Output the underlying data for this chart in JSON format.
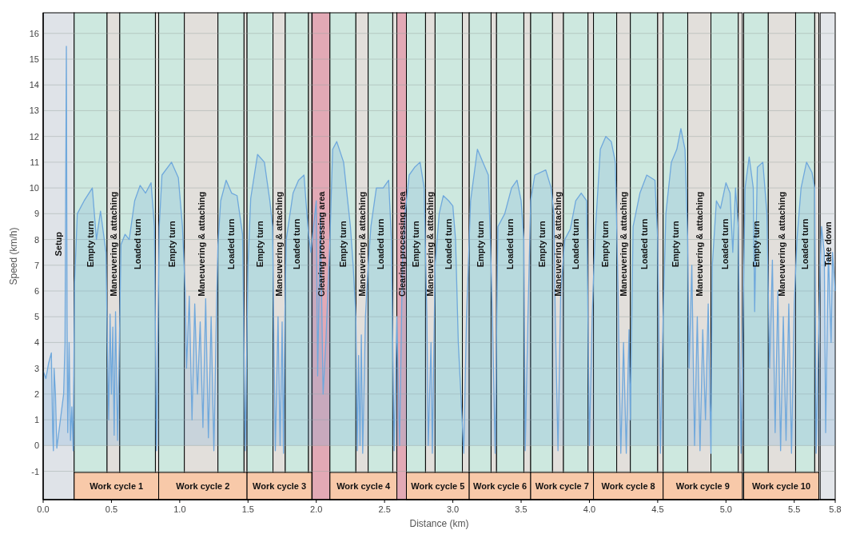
{
  "chart_data": {
    "type": "area",
    "xlabel": "Distance (km)",
    "ylabel": "Speed (km/h)",
    "xlim": [
      0,
      5.8
    ],
    "ylim": [
      -2.1,
      16.8
    ],
    "xticks": [
      {
        "value": 0,
        "label": "0.0"
      },
      0.5,
      {
        "value": 1,
        "label": "1.0"
      },
      1.5,
      {
        "value": 2,
        "label": "2.0"
      },
      2.5,
      {
        "value": 3,
        "label": "3.0"
      },
      3.5,
      {
        "value": 4,
        "label": "4.0"
      },
      4.5,
      {
        "value": 5,
        "label": "5.0"
      },
      5.5,
      5.8
    ],
    "yticks": [
      -1,
      0,
      1,
      2,
      3,
      4,
      5,
      6,
      7,
      8,
      9,
      10,
      11,
      12,
      13,
      14,
      15,
      16
    ],
    "grid": "y",
    "series": [
      {
        "color": "#6fa8dc",
        "x": [
          0,
          0.02,
          0.04,
          0.06,
          0.07,
          0.075,
          0.08,
          0.09,
          0.1,
          0.15,
          0.16,
          0.17,
          0.175,
          0.18,
          0.19,
          0.2,
          0.21,
          0.22,
          0.23,
          0.25,
          0.3,
          0.36,
          0.39,
          0.42,
          0.46,
          0.47,
          0.48,
          0.49,
          0.5,
          0.51,
          0.52,
          0.53,
          0.545,
          0.555,
          0.57,
          0.6,
          0.63,
          0.67,
          0.71,
          0.75,
          0.79,
          0.815,
          0.83,
          0.85,
          0.87,
          0.94,
          0.99,
          1.02,
          1.04,
          1.05,
          1.07,
          1.09,
          1.11,
          1.13,
          1.15,
          1.17,
          1.19,
          1.21,
          1.23,
          1.25,
          1.27,
          1.28,
          1.3,
          1.34,
          1.38,
          1.42,
          1.46,
          1.48,
          1.5,
          1.52,
          1.57,
          1.62,
          1.66,
          1.68,
          1.69,
          1.7,
          1.72,
          1.735,
          1.75,
          1.76,
          1.77,
          1.78,
          1.83,
          1.87,
          1.91,
          1.94,
          1.96,
          1.98,
          2.0,
          2.01,
          2.03,
          2.05,
          2.07,
          2.1,
          2.12,
          2.15,
          2.2,
          2.25,
          2.27,
          2.29,
          2.3,
          2.31,
          2.32,
          2.33,
          2.34,
          2.36,
          2.38,
          2.4,
          2.44,
          2.49,
          2.53,
          2.55,
          2.57,
          2.59,
          2.61,
          2.63,
          2.65,
          2.68,
          2.72,
          2.76,
          2.79,
          2.81,
          2.82,
          2.84,
          2.85,
          2.87,
          2.9,
          2.93,
          2.97,
          3.0,
          3.02,
          3.04,
          3.08,
          3.1,
          3.13,
          3.18,
          3.22,
          3.26,
          3.28,
          3.29,
          3.31,
          3.33,
          3.38,
          3.43,
          3.47,
          3.5,
          3.52,
          3.53,
          3.55,
          3.57,
          3.6,
          3.68,
          3.72,
          3.74,
          3.75,
          3.77,
          3.79,
          3.82,
          3.86,
          3.9,
          3.94,
          3.98,
          4.0,
          4.02,
          4.04,
          4.08,
          4.12,
          4.16,
          4.19,
          4.21,
          4.22,
          4.23,
          4.25,
          4.27,
          4.29,
          4.3,
          4.32,
          4.37,
          4.42,
          4.48,
          4.5,
          4.52,
          4.54,
          4.56,
          4.6,
          4.64,
          4.67,
          4.7,
          4.72,
          4.73,
          4.75,
          4.77,
          4.79,
          4.81,
          4.83,
          4.85,
          4.87,
          4.89,
          4.9,
          4.93,
          4.96,
          5.0,
          5.03,
          5.05,
          5.07,
          5.09,
          5.11,
          5.14,
          5.17,
          5.2,
          5.21,
          5.23,
          5.27,
          5.3,
          5.32,
          5.34,
          5.36,
          5.38,
          5.4,
          5.42,
          5.44,
          5.46,
          5.48,
          5.5,
          5.52,
          5.55,
          5.59,
          5.63,
          5.65,
          5.66,
          5.69,
          5.7,
          5.72,
          5.73,
          5.75,
          5.77,
          5.78,
          5.8
        ],
        "values": [
          2.9,
          2.6,
          3.2,
          3.6,
          0.5,
          -0.2,
          3.0,
          2.0,
          -0.1,
          2.0,
          4,
          15.5,
          5,
          0.5,
          4,
          0.2,
          1.5,
          -0.2,
          6.3,
          9,
          9.5,
          10,
          8,
          9.1,
          7.5,
          4,
          1,
          5.1,
          2,
          4.6,
          0.4,
          5.2,
          0.2,
          3,
          7.8,
          8.2,
          8,
          9.5,
          10.1,
          9.8,
          10.2,
          8.5,
          -0.2,
          8.5,
          10.5,
          11,
          10.4,
          8.5,
          6,
          3,
          5.8,
          1,
          5.5,
          2,
          4.8,
          0.7,
          5.7,
          0.3,
          5,
          -0.2,
          5.5,
          7.8,
          9.5,
          10.3,
          9.8,
          9.7,
          8.2,
          -0.2,
          7,
          9.6,
          11.3,
          11,
          9.5,
          8.5,
          4,
          -0.2,
          5,
          0,
          4.8,
          -0.3,
          5,
          8,
          9.8,
          10.3,
          10.5,
          8.4,
          7.5,
          8.5,
          9.5,
          2.7,
          9,
          2,
          4,
          8,
          11.5,
          11.8,
          11,
          8.5,
          7,
          5,
          -0.2,
          3.5,
          0,
          4.3,
          -0.3,
          5,
          7,
          8.5,
          10,
          10,
          10.3,
          8,
          -0.2,
          5,
          0,
          7,
          9,
          10.5,
          10.8,
          11,
          10,
          5,
          0,
          4,
          -0.3,
          7,
          9,
          9.7,
          9.5,
          9.3,
          8,
          4,
          -0.3,
          5,
          9.5,
          11.5,
          11,
          10.5,
          7,
          5,
          -0.3,
          8.5,
          9,
          10,
          10.3,
          9.5,
          8,
          -0.2,
          5,
          9.5,
          10.5,
          10.7,
          10,
          9,
          5,
          -0.2,
          6,
          8,
          8.4,
          9.5,
          9.8,
          9.5,
          0,
          5,
          8,
          11.5,
          12,
          11.8,
          11,
          6,
          2.5,
          -0.3,
          4,
          -0.3,
          4.5,
          1,
          8.5,
          9.8,
          10.5,
          10.3,
          8,
          -0.3,
          5,
          9,
          11,
          11.5,
          12.3,
          11.5,
          8,
          3,
          7,
          0,
          5,
          -0.2,
          4.5,
          1,
          5.5,
          -0.3,
          7,
          9.5,
          9.2,
          10.2,
          9.8,
          7.5,
          10,
          8.5,
          -0.3,
          10,
          11.2,
          10,
          5.2,
          10.8,
          11,
          9,
          3,
          7.2,
          0.5,
          6,
          -0.2,
          5,
          0.2,
          5.5,
          -0.3,
          5.5,
          8,
          10,
          11,
          10.6,
          10,
          -0.3,
          7,
          8.5,
          7.5,
          0.5,
          7.5,
          4,
          7.5,
          6
        ]
      }
    ],
    "bands": [
      {
        "axis": "x",
        "from": 0,
        "to": 0.227,
        "label": "Setup",
        "color": "#dfe3e8"
      },
      {
        "axis": "x",
        "from": 0.227,
        "to": 0.468,
        "label": "Empty turn",
        "color": "#cde8df"
      },
      {
        "axis": "x",
        "from": 0.468,
        "to": 0.561,
        "label": "Maneuvering & attaching",
        "color": "#e2dfdb"
      },
      {
        "axis": "x",
        "from": 0.561,
        "to": 0.822,
        "label": "Loaded turn",
        "color": "#cde8df"
      },
      {
        "axis": "x",
        "from": 0.822,
        "to": 0.846,
        "color": "#e2dfdb"
      },
      {
        "axis": "x",
        "from": 0.846,
        "to": 1.034,
        "label": "Empty turn",
        "color": "#cde8df"
      },
      {
        "axis": "x",
        "from": 1.034,
        "to": 1.28,
        "label": "Maneuvering & attaching",
        "color": "#e2dfdb"
      },
      {
        "axis": "x",
        "from": 1.28,
        "to": 1.471,
        "label": "Loaded turn",
        "color": "#cde8df"
      },
      {
        "axis": "x",
        "from": 1.471,
        "to": 1.493,
        "color": "#e2dfdb"
      },
      {
        "axis": "x",
        "from": 1.493,
        "to": 1.683,
        "label": "Empty turn",
        "color": "#cde8df"
      },
      {
        "axis": "x",
        "from": 1.683,
        "to": 1.773,
        "label": "Maneuvering & attaching",
        "color": "#e2dfdb"
      },
      {
        "axis": "x",
        "from": 1.773,
        "to": 1.943,
        "label": "Loaded turn",
        "color": "#cde8df"
      },
      {
        "axis": "x",
        "from": 1.943,
        "to": 1.967,
        "color": "#e2dfdb"
      },
      {
        "axis": "x",
        "from": 1.97,
        "to": 2.1,
        "label": "Clearing processing area",
        "color": "#e2a9b5"
      },
      {
        "axis": "x",
        "from": 2.1,
        "to": 2.29,
        "label": "Empty turn",
        "color": "#cde8df"
      },
      {
        "axis": "x",
        "from": 2.29,
        "to": 2.38,
        "label": "Maneuvering & attaching",
        "color": "#e2dfdb"
      },
      {
        "axis": "x",
        "from": 2.38,
        "to": 2.56,
        "label": "Loaded turn",
        "color": "#cde8df"
      },
      {
        "axis": "x",
        "from": 2.56,
        "to": 2.59,
        "color": "#e2dfdb"
      },
      {
        "axis": "x",
        "from": 2.59,
        "to": 2.66,
        "label": "Clearing processing area",
        "color": "#e2a9b5"
      },
      {
        "axis": "x",
        "from": 2.66,
        "to": 2.8,
        "label": "Empty turn",
        "color": "#cde8df"
      },
      {
        "axis": "x",
        "from": 2.8,
        "to": 2.87,
        "label": "Maneuvering & attaching",
        "color": "#e2dfdb"
      },
      {
        "axis": "x",
        "from": 2.87,
        "to": 3.07,
        "label": "Loaded turn",
        "color": "#cde8df"
      },
      {
        "axis": "x",
        "from": 3.07,
        "to": 3.12,
        "color": "#e2dfdb"
      },
      {
        "axis": "x",
        "from": 3.12,
        "to": 3.28,
        "label": "Empty turn",
        "color": "#cde8df"
      },
      {
        "axis": "x",
        "from": 3.28,
        "to": 3.32,
        "color": "#e2dfdb"
      },
      {
        "axis": "x",
        "from": 3.32,
        "to": 3.52,
        "label": "Loaded turn",
        "color": "#cde8df"
      },
      {
        "axis": "x",
        "from": 3.52,
        "to": 3.57,
        "color": "#e2dfdb"
      },
      {
        "axis": "x",
        "from": 3.57,
        "to": 3.73,
        "label": "Empty turn",
        "color": "#cde8df"
      },
      {
        "axis": "x",
        "from": 3.73,
        "to": 3.81,
        "label": "Maneuvering & attaching",
        "color": "#e2dfdb"
      },
      {
        "axis": "x",
        "from": 3.81,
        "to": 3.99,
        "label": "Loaded turn",
        "color": "#cde8df"
      },
      {
        "axis": "x",
        "from": 3.99,
        "to": 4.03,
        "color": "#e2dfdb"
      },
      {
        "axis": "x",
        "from": 4.03,
        "to": 4.2,
        "label": "Empty turn",
        "color": "#cde8df"
      },
      {
        "axis": "x",
        "from": 4.2,
        "to": 4.3,
        "label": "Maneuvering & attaching",
        "color": "#e2dfdb"
      },
      {
        "axis": "x",
        "from": 4.3,
        "to": 4.5,
        "label": "Loaded turn",
        "color": "#cde8df"
      },
      {
        "axis": "x",
        "from": 4.5,
        "to": 4.54,
        "color": "#e2dfdb"
      },
      {
        "axis": "x",
        "from": 4.54,
        "to": 4.72,
        "label": "Empty turn",
        "color": "#cde8df"
      },
      {
        "axis": "x",
        "from": 4.72,
        "to": 4.89,
        "label": "Maneuvering & attaching",
        "color": "#e2dfdb"
      },
      {
        "axis": "x",
        "from": 4.89,
        "to": 5.09,
        "label": "Loaded turn",
        "color": "#cde8df"
      },
      {
        "axis": "x",
        "from": 5.09,
        "to": 5.12,
        "color": "#e2dfdb"
      },
      {
        "axis": "x",
        "from": 5.13,
        "to": 5.31,
        "label": "Empty turn",
        "color": "#cde8df"
      },
      {
        "axis": "x",
        "from": 5.31,
        "to": 5.51,
        "label": "Maneuvering & attaching",
        "color": "#e2dfdb"
      },
      {
        "axis": "x",
        "from": 5.51,
        "to": 5.65,
        "label": "Loaded turn",
        "color": "#cde8df"
      },
      {
        "axis": "x",
        "from": 5.65,
        "to": 5.68,
        "color": "#e2dfdb"
      },
      {
        "axis": "x",
        "from": 5.69,
        "to": 5.8,
        "label": "Take down",
        "color": "#e3e6ea"
      },
      {
        "axis": "x",
        "from": 0.227,
        "to": 0.846,
        "label": "Work cycle 1",
        "color": "#f8c9a9"
      },
      {
        "axis": "x",
        "from": 0.846,
        "to": 1.493,
        "label": "Work cycle 2",
        "color": "#f8c9a9"
      },
      {
        "axis": "x",
        "from": 1.493,
        "to": 1.967,
        "label": "Work cycle 3",
        "color": "#f8c9a9"
      },
      {
        "axis": "x",
        "from": 2.1,
        "to": 2.59,
        "label": "Work cycle 4",
        "color": "#f8c9a9"
      },
      {
        "axis": "x",
        "from": 2.66,
        "to": 3.12,
        "label": "Work cycle 5",
        "color": "#f8c9a9"
      },
      {
        "axis": "x",
        "from": 3.12,
        "to": 3.57,
        "label": "Work cycle 6",
        "color": "#f8c9a9"
      },
      {
        "axis": "x",
        "from": 3.57,
        "to": 4.03,
        "label": "Work cycle 7",
        "color": "#f8c9a9"
      },
      {
        "axis": "x",
        "from": 4.03,
        "to": 4.54,
        "label": "Work cycle 8",
        "color": "#f8c9a9"
      },
      {
        "axis": "x",
        "from": 4.54,
        "to": 5.12,
        "label": "Work cycle 9",
        "color": "#f8c9a9"
      },
      {
        "axis": "x",
        "from": 5.13,
        "to": 5.68,
        "label": "Work cycle 10",
        "color": "#f8c9a9"
      }
    ]
  }
}
